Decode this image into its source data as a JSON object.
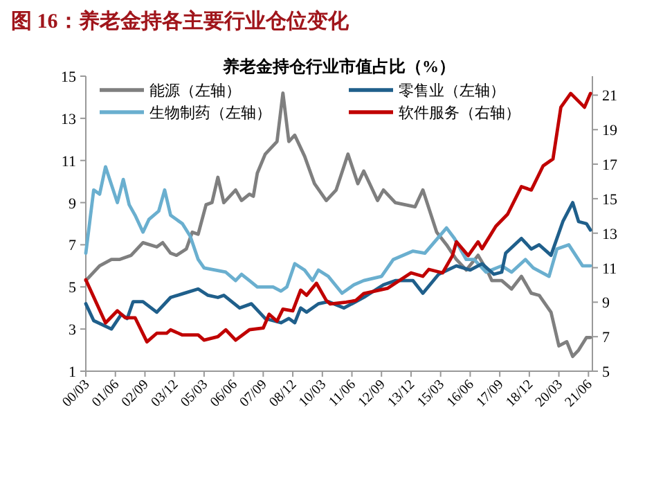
{
  "chart_data": {
    "type": "line",
    "title": "图 16：养老金持各主要行业仓位变化",
    "subtitle": "养老金持仓行业市值占比（%）",
    "series": [
      {
        "name": "能源（左轴）",
        "color": "#7f7f7f",
        "axis": "y",
        "x": [
          "2000-03",
          "2000-10",
          "2001-04",
          "2001-08",
          "2002-02",
          "2002-08",
          "2003-03",
          "2003-06",
          "2003-10",
          "2004-01",
          "2004-06",
          "2004-09",
          "2004-12",
          "2005-04",
          "2005-07",
          "2005-10",
          "2006-01",
          "2006-07",
          "2006-10",
          "2007-02",
          "2007-04",
          "2007-06",
          "2007-10",
          "2008-04",
          "2008-07",
          "2008-10",
          "2009-01",
          "2009-06",
          "2009-11",
          "2010-05",
          "2010-10",
          "2011-04",
          "2011-09",
          "2011-12",
          "2012-07",
          "2012-10",
          "2013-04",
          "2014-02",
          "2014-06",
          "2015-01",
          "2015-06",
          "2015-11",
          "2016-04",
          "2016-10",
          "2017-03",
          "2017-05",
          "2017-10",
          "2018-03",
          "2018-08",
          "2019-01",
          "2019-05",
          "2019-11",
          "2020-03",
          "2020-07",
          "2020-10",
          "2021-01",
          "2021-05",
          "2021-07"
        ],
        "values": [
          5.3,
          6.0,
          6.3,
          6.3,
          6.5,
          7.1,
          6.9,
          7.1,
          6.6,
          6.5,
          6.8,
          7.6,
          7.5,
          8.9,
          9.0,
          10.2,
          9.0,
          9.6,
          9.1,
          9.4,
          9.3,
          10.4,
          11.3,
          11.9,
          14.2,
          11.9,
          12.2,
          11.2,
          9.9,
          9.1,
          9.6,
          11.3,
          9.9,
          10.5,
          9.1,
          9.6,
          9.0,
          8.8,
          9.6,
          7.6,
          7.0,
          6.3,
          5.8,
          6.5,
          5.7,
          5.3,
          5.3,
          4.9,
          5.5,
          4.7,
          4.6,
          3.8,
          2.2,
          2.4,
          1.7,
          2.0,
          2.6,
          2.6
        ]
      },
      {
        "name": "生物制药（左轴）",
        "color": "#6aafcf",
        "axis": "y",
        "x": [
          "2000-03",
          "2000-07",
          "2000-10",
          "2001-01",
          "2001-07",
          "2001-10",
          "2002-01",
          "2002-04",
          "2002-08",
          "2002-11",
          "2003-04",
          "2003-07",
          "2003-10",
          "2004-04",
          "2004-08",
          "2004-12",
          "2005-03",
          "2006-02",
          "2006-07",
          "2006-10",
          "2007-02",
          "2007-06",
          "2008-02",
          "2008-06",
          "2008-09",
          "2009-01",
          "2009-06",
          "2009-10",
          "2010-01",
          "2010-06",
          "2011-01",
          "2011-07",
          "2011-12",
          "2012-09",
          "2013-03",
          "2014-01",
          "2014-07",
          "2015-06",
          "2015-10",
          "2016-04",
          "2016-08",
          "2017-02",
          "2017-10",
          "2018-03",
          "2018-10",
          "2019-02",
          "2019-10",
          "2020-02",
          "2020-08",
          "2021-03",
          "2021-07"
        ],
        "values": [
          6.6,
          9.6,
          9.4,
          10.7,
          9.0,
          10.1,
          8.9,
          8.4,
          7.6,
          8.2,
          8.6,
          9.6,
          8.4,
          8.0,
          7.4,
          6.3,
          5.9,
          5.7,
          5.3,
          5.6,
          5.3,
          5.0,
          5.0,
          4.8,
          5.0,
          6.1,
          5.8,
          5.3,
          5.8,
          5.5,
          4.7,
          5.1,
          5.3,
          5.5,
          6.3,
          6.7,
          6.6,
          7.8,
          7.3,
          6.3,
          6.3,
          5.7,
          6.0,
          5.7,
          6.3,
          5.9,
          5.5,
          6.8,
          7.0,
          6.0,
          6.0
        ]
      },
      {
        "name": "零售业（左轴）",
        "color": "#1f5f8b",
        "axis": "y",
        "x": [
          "2000-03",
          "2000-07",
          "2001-04",
          "2001-09",
          "2001-12",
          "2002-03",
          "2002-08",
          "2003-03",
          "2003-10",
          "2004-05",
          "2004-12",
          "2005-05",
          "2005-10",
          "2006-01",
          "2006-09",
          "2007-03",
          "2007-10",
          "2008-02",
          "2008-06",
          "2008-10",
          "2009-01",
          "2009-04",
          "2009-07",
          "2010-01",
          "2010-06",
          "2011-02",
          "2011-12",
          "2012-10",
          "2013-04",
          "2014-01",
          "2014-06",
          "2015-02",
          "2015-11",
          "2016-06",
          "2016-12",
          "2017-06",
          "2017-10",
          "2017-12",
          "2018-08",
          "2019-01",
          "2019-05",
          "2019-11",
          "2020-05",
          "2020-10",
          "2021-01",
          "2021-05",
          "2021-07"
        ],
        "values": [
          4.2,
          3.4,
          3.0,
          3.7,
          3.5,
          4.3,
          4.3,
          3.8,
          4.5,
          4.7,
          4.9,
          4.6,
          4.5,
          4.6,
          4.0,
          4.2,
          3.5,
          3.4,
          3.3,
          3.5,
          3.3,
          4.0,
          3.8,
          4.2,
          4.3,
          4.0,
          4.5,
          5.1,
          5.3,
          5.3,
          4.7,
          5.6,
          6.0,
          5.8,
          6.1,
          5.6,
          5.7,
          6.6,
          7.3,
          6.8,
          7.0,
          6.5,
          8.1,
          9.0,
          8.1,
          8.0,
          7.7
        ]
      },
      {
        "name": "软件服务（右轴）",
        "color": "#c00000",
        "axis": "y2",
        "x": [
          "2000-03",
          "2001-01",
          "2001-07",
          "2001-11",
          "2002-04",
          "2002-10",
          "2003-03",
          "2003-08",
          "2003-10",
          "2004-04",
          "2004-12",
          "2005-03",
          "2005-10",
          "2006-02",
          "2006-07",
          "2007-02",
          "2007-09",
          "2007-12",
          "2008-04",
          "2008-07",
          "2008-12",
          "2009-04",
          "2009-07",
          "2009-12",
          "2010-05",
          "2010-07",
          "2011-03",
          "2011-08",
          "2011-12",
          "2012-12",
          "2013-12",
          "2014-06",
          "2014-09",
          "2015-04",
          "2015-09",
          "2015-11",
          "2016-05",
          "2016-10",
          "2016-12",
          "2017-07",
          "2018-01",
          "2018-08",
          "2019-01",
          "2019-07",
          "2019-12",
          "2020-04",
          "2020-09",
          "2021-04",
          "2021-07"
        ],
        "values": [
          10.3,
          7.8,
          8.5,
          8.1,
          8.1,
          6.7,
          7.2,
          7.2,
          7.4,
          7.1,
          7.1,
          6.8,
          7.0,
          7.4,
          6.8,
          7.4,
          7.5,
          8.3,
          7.9,
          8.6,
          8.5,
          9.7,
          9.4,
          10.1,
          9.1,
          8.9,
          9.0,
          9.1,
          9.5,
          9.8,
          10.7,
          10.5,
          10.9,
          10.7,
          11.7,
          12.5,
          11.7,
          12.5,
          12.1,
          13.4,
          14.1,
          15.7,
          15.5,
          16.9,
          17.3,
          20.3,
          21.1,
          20.3,
          21.1
        ]
      }
    ],
    "xlim": [
      "2000-03",
      "2021-08"
    ],
    "xticks": [
      {
        "value": "2000-03",
        "label": "00/03"
      },
      {
        "value": "2001-06",
        "label": "01/06"
      },
      {
        "value": "2002-09",
        "label": "02/09"
      },
      {
        "value": "2003-12",
        "label": "03/12"
      },
      {
        "value": "2005-03",
        "label": "05/03"
      },
      {
        "value": "2006-06",
        "label": "06/06"
      },
      {
        "value": "2007-09",
        "label": "07/09"
      },
      {
        "value": "2008-12",
        "label": "08/12"
      },
      {
        "value": "2010-03",
        "label": "10/03"
      },
      {
        "value": "2011-06",
        "label": "11/06"
      },
      {
        "value": "2012-09",
        "label": "12/09"
      },
      {
        "value": "2013-12",
        "label": "13/12"
      },
      {
        "value": "2015-03",
        "label": "15/03"
      },
      {
        "value": "2016-06",
        "label": "16/06"
      },
      {
        "value": "2017-09",
        "label": "17/09"
      },
      {
        "value": "2018-12",
        "label": "18/12"
      },
      {
        "value": "2020-03",
        "label": "20/03"
      },
      {
        "value": "2021-06",
        "label": "21/06"
      }
    ],
    "ylim": [
      1,
      15
    ],
    "yticks": [
      1,
      3,
      5,
      7,
      9,
      11,
      13,
      15
    ],
    "y2lim": [
      5,
      22.1
    ],
    "y2ticks": [
      5,
      7,
      9,
      11,
      13,
      15,
      17,
      19,
      21
    ],
    "legend": "top",
    "grid": false
  }
}
